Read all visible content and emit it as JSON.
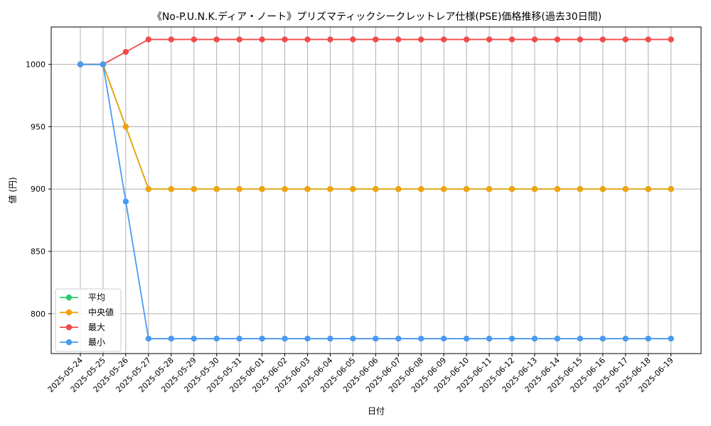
{
  "chart_data": {
    "type": "line",
    "title": "《No-P.U.N.K.ディア・ノート》プリズマティックシークレットレア仕様(PSE)価格推移(過去30日間)",
    "xlabel": "日付",
    "ylabel": "値 (円)",
    "ylim": [
      768,
      1030
    ],
    "yticks": [
      800,
      850,
      900,
      950,
      1000
    ],
    "grid": true,
    "legend_position": "lower-left",
    "categories": [
      "2025-05-24",
      "2025-05-25",
      "2025-05-26",
      "2025-05-27",
      "2025-05-28",
      "2025-05-29",
      "2025-05-30",
      "2025-05-31",
      "2025-06-01",
      "2025-06-02",
      "2025-06-03",
      "2025-06-04",
      "2025-06-05",
      "2025-06-06",
      "2025-06-07",
      "2025-06-08",
      "2025-06-09",
      "2025-06-10",
      "2025-06-11",
      "2025-06-12",
      "2025-06-13",
      "2025-06-14",
      "2025-06-15",
      "2025-06-16",
      "2025-06-17",
      "2025-06-18",
      "2025-06-19"
    ],
    "series": [
      {
        "name": "平均",
        "color": "#2ecc71",
        "values": [
          1000,
          1000,
          950,
          900,
          900,
          900,
          900,
          900,
          900,
          900,
          900,
          900,
          900,
          900,
          900,
          900,
          900,
          900,
          900,
          900,
          900,
          900,
          900,
          900,
          900,
          900,
          900
        ]
      },
      {
        "name": "中央値",
        "color": "#f1a20c",
        "values": [
          1000,
          1000,
          950,
          900,
          900,
          900,
          900,
          900,
          900,
          900,
          900,
          900,
          900,
          900,
          900,
          900,
          900,
          900,
          900,
          900,
          900,
          900,
          900,
          900,
          900,
          900,
          900
        ]
      },
      {
        "name": "最大",
        "color": "#f04b4b",
        "values": [
          1000,
          1000,
          1010,
          1020,
          1020,
          1020,
          1020,
          1020,
          1020,
          1020,
          1020,
          1020,
          1020,
          1020,
          1020,
          1020,
          1020,
          1020,
          1020,
          1020,
          1020,
          1020,
          1020,
          1020,
          1020,
          1020,
          1020
        ]
      },
      {
        "name": "最小",
        "color": "#4a9af0",
        "values": [
          1000,
          1000,
          890,
          780,
          780,
          780,
          780,
          780,
          780,
          780,
          780,
          780,
          780,
          780,
          780,
          780,
          780,
          780,
          780,
          780,
          780,
          780,
          780,
          780,
          780,
          780,
          780
        ]
      }
    ]
  }
}
